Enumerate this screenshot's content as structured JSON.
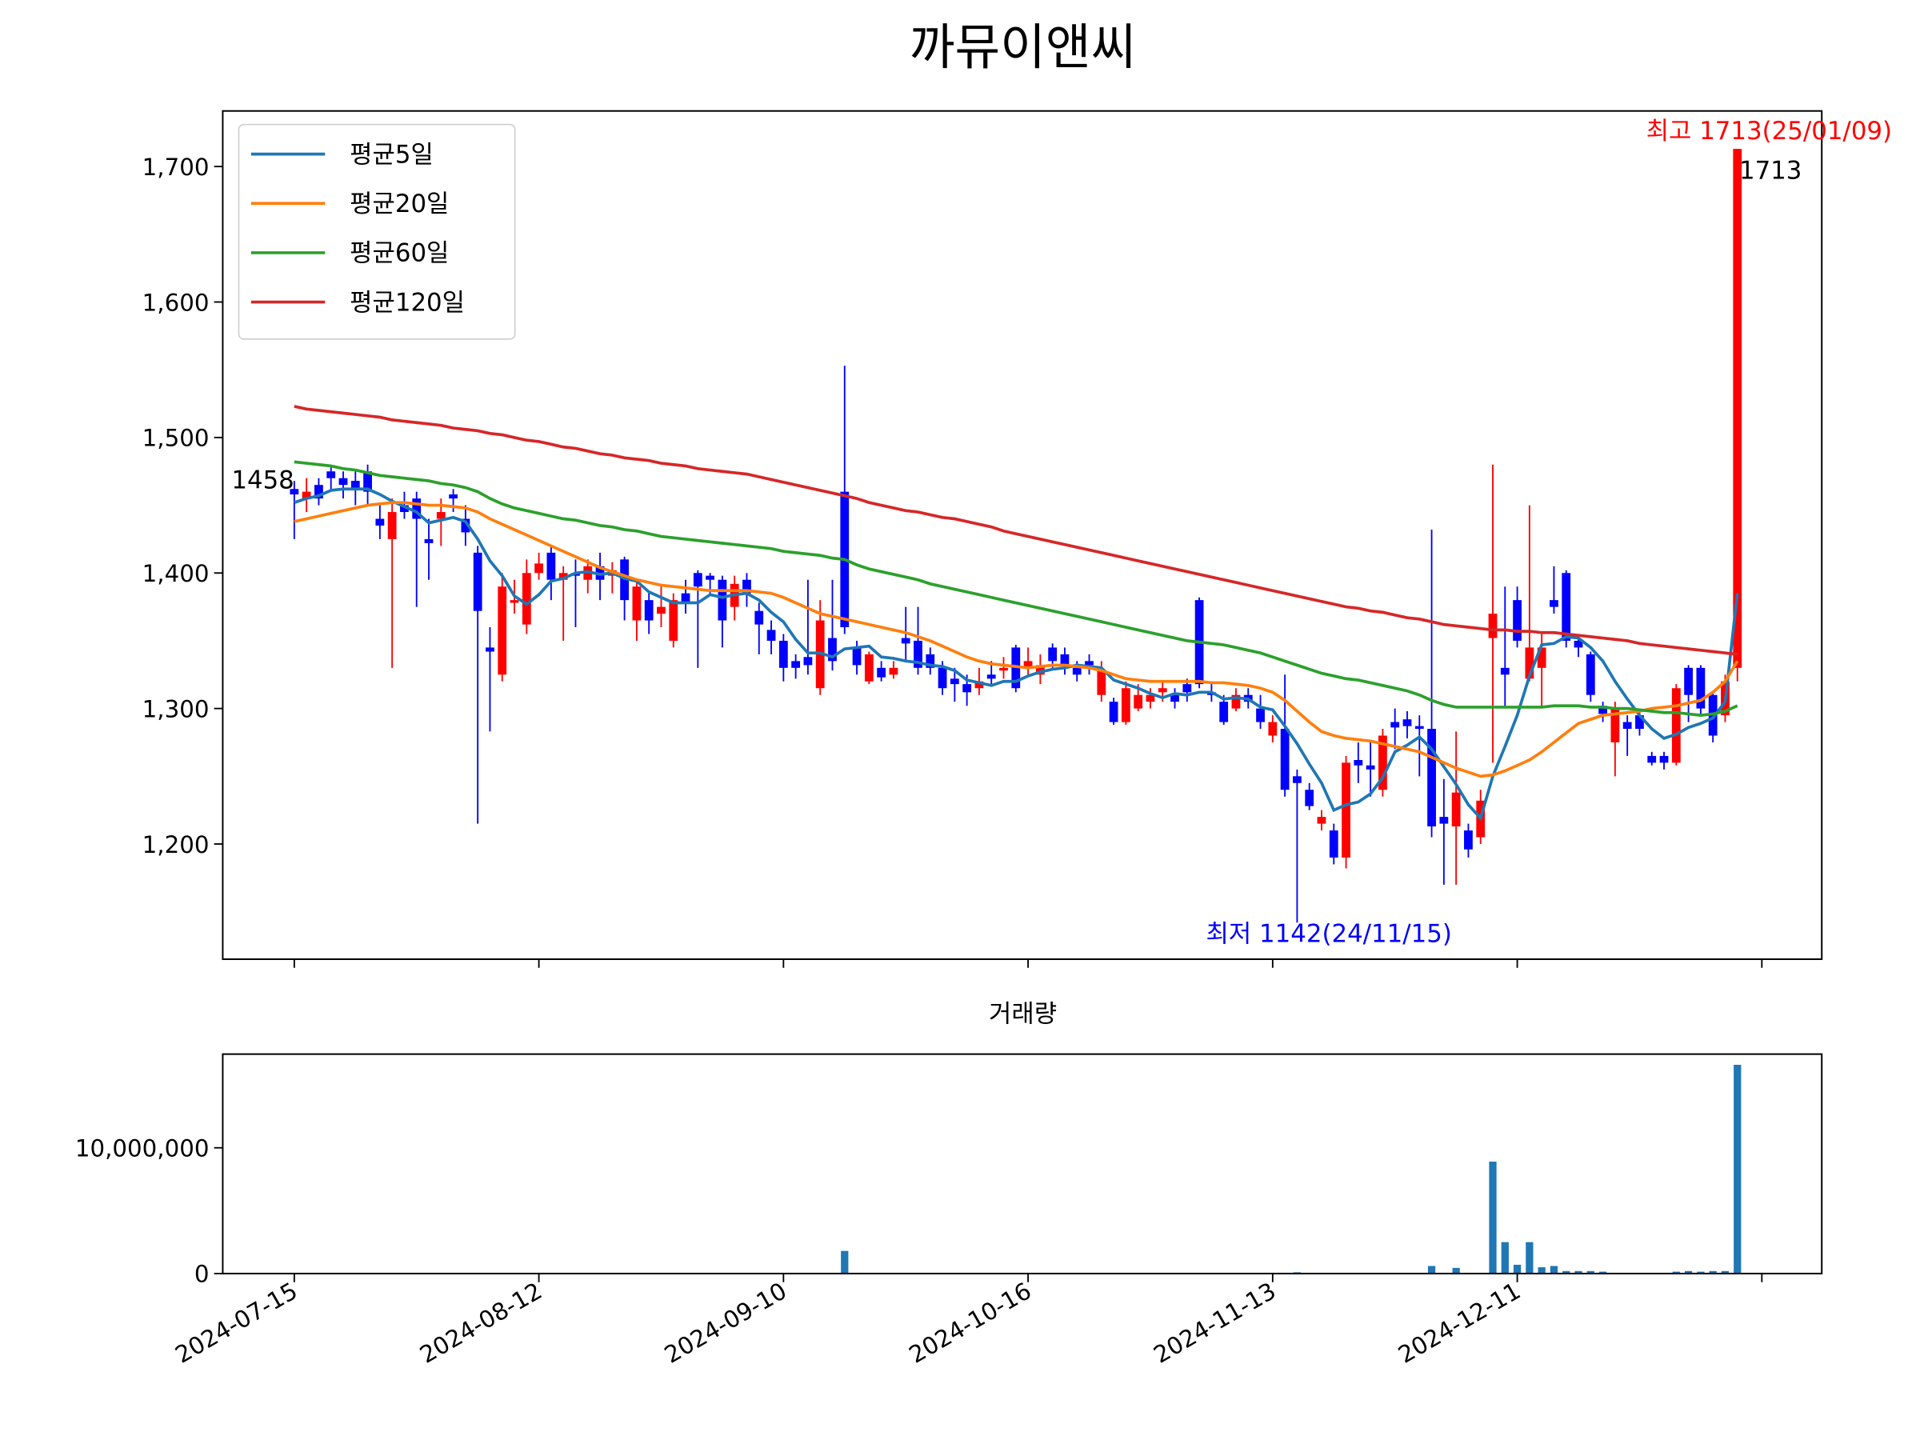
{
  "chart_data": [
    {
      "type": "candlestick",
      "title": "까뮤이앤씨",
      "open": [
        1462,
        1455,
        1465,
        1475,
        1470,
        1468,
        1475,
        1440,
        1425,
        1450,
        1455,
        1425,
        1440,
        1458,
        1440,
        1415,
        1345,
        1325,
        1378,
        1362,
        1400,
        1415,
        1395,
        1400,
        1395,
        1405,
        1398,
        1410,
        1365,
        1380,
        1370,
        1350,
        1385,
        1400,
        1398,
        1395,
        1375,
        1395,
        1372,
        1358,
        1350,
        1335,
        1338,
        1315,
        1352,
        1460,
        1345,
        1320,
        1330,
        1325,
        1352,
        1350,
        1340,
        1330,
        1322,
        1318,
        1315,
        1325,
        1328,
        1345,
        1330,
        1325,
        1345,
        1340,
        1330,
        1335,
        1310,
        1305,
        1290,
        1300,
        1305,
        1312,
        1310,
        1318,
        1380,
        1312,
        1305,
        1300,
        1310,
        1300,
        1280,
        1285,
        1250,
        1240,
        1215,
        1210,
        1190,
        1262,
        1258,
        1240,
        1290,
        1292,
        1287,
        1285,
        1220,
        1213,
        1210,
        1205,
        1352,
        1330,
        1380,
        1322,
        1330,
        1380,
        1400,
        1350,
        1340,
        1302,
        1275,
        1290,
        1295,
        1265,
        1265,
        1260,
        1330,
        1330,
        1310,
        1295,
        1330
      ],
      "high": [
        1468,
        1470,
        1470,
        1478,
        1475,
        1475,
        1480,
        1450,
        1455,
        1460,
        1460,
        1440,
        1455,
        1462,
        1450,
        1420,
        1360,
        1400,
        1395,
        1410,
        1415,
        1420,
        1405,
        1410,
        1410,
        1415,
        1408,
        1412,
        1395,
        1385,
        1390,
        1385,
        1395,
        1402,
        1400,
        1398,
        1398,
        1400,
        1378,
        1365,
        1355,
        1340,
        1395,
        1380,
        1395,
        1553,
        1350,
        1342,
        1335,
        1335,
        1375,
        1375,
        1345,
        1335,
        1330,
        1325,
        1330,
        1335,
        1338,
        1347,
        1345,
        1340,
        1348,
        1345,
        1335,
        1340,
        1335,
        1308,
        1320,
        1318,
        1315,
        1320,
        1315,
        1322,
        1382,
        1320,
        1310,
        1315,
        1315,
        1310,
        1295,
        1325,
        1255,
        1245,
        1225,
        1215,
        1265,
        1275,
        1275,
        1285,
        1300,
        1298,
        1295,
        1432,
        1248,
        1283,
        1215,
        1240,
        1480,
        1390,
        1390,
        1450,
        1355,
        1405,
        1402,
        1355,
        1342,
        1305,
        1305,
        1295,
        1300,
        1268,
        1268,
        1318,
        1332,
        1332,
        1312,
        1325,
        1713
      ],
      "low": [
        1425,
        1445,
        1450,
        1460,
        1455,
        1450,
        1450,
        1425,
        1330,
        1440,
        1375,
        1395,
        1420,
        1445,
        1420,
        1215,
        1283,
        1320,
        1370,
        1355,
        1395,
        1380,
        1350,
        1360,
        1385,
        1380,
        1385,
        1365,
        1350,
        1355,
        1360,
        1345,
        1370,
        1330,
        1385,
        1345,
        1365,
        1375,
        1340,
        1340,
        1320,
        1322,
        1325,
        1310,
        1328,
        1355,
        1325,
        1318,
        1320,
        1322,
        1335,
        1325,
        1325,
        1310,
        1305,
        1302,
        1310,
        1318,
        1322,
        1312,
        1325,
        1318,
        1330,
        1325,
        1320,
        1325,
        1305,
        1288,
        1288,
        1298,
        1300,
        1305,
        1300,
        1305,
        1315,
        1305,
        1288,
        1298,
        1300,
        1285,
        1275,
        1235,
        1142,
        1225,
        1210,
        1185,
        1182,
        1245,
        1235,
        1235,
        1270,
        1278,
        1250,
        1205,
        1170,
        1170,
        1190,
        1200,
        1260,
        1300,
        1345,
        1320,
        1300,
        1370,
        1345,
        1338,
        1305,
        1290,
        1250,
        1265,
        1280,
        1258,
        1255,
        1258,
        1290,
        1295,
        1275,
        1290,
        1320
      ],
      "close": [
        1458,
        1460,
        1455,
        1470,
        1465,
        1462,
        1460,
        1435,
        1445,
        1445,
        1440,
        1422,
        1445,
        1455,
        1430,
        1372,
        1342,
        1390,
        1380,
        1400,
        1407,
        1395,
        1400,
        1398,
        1405,
        1395,
        1402,
        1380,
        1390,
        1365,
        1375,
        1380,
        1378,
        1390,
        1395,
        1365,
        1392,
        1385,
        1362,
        1350,
        1330,
        1330,
        1332,
        1365,
        1335,
        1360,
        1332,
        1340,
        1323,
        1330,
        1348,
        1330,
        1330,
        1315,
        1318,
        1312,
        1320,
        1322,
        1330,
        1315,
        1335,
        1332,
        1335,
        1332,
        1325,
        1332,
        1328,
        1290,
        1315,
        1310,
        1310,
        1315,
        1305,
        1312,
        1318,
        1310,
        1290,
        1310,
        1305,
        1290,
        1290,
        1240,
        1245,
        1228,
        1220,
        1190,
        1260,
        1258,
        1255,
        1280,
        1286,
        1287,
        1285,
        1213,
        1215,
        1238,
        1196,
        1232,
        1370,
        1325,
        1350,
        1345,
        1345,
        1375,
        1350,
        1345,
        1310,
        1296,
        1300,
        1285,
        1285,
        1260,
        1260,
        1315,
        1310,
        1300,
        1280,
        1320,
        1713
      ],
      "up_color": "#ff0000",
      "down_color": "#0000ff",
      "series": [
        {
          "name": "평균5일",
          "color": "#1f77b4",
          "values": [
            1452,
            1455,
            1457,
            1461,
            1462,
            1462,
            1462,
            1458,
            1453,
            1449,
            1445,
            1437,
            1439,
            1441,
            1438,
            1425,
            1409,
            1398,
            1383,
            1377,
            1384,
            1394,
            1396,
            1400,
            1401,
            1399,
            1400,
            1396,
            1394,
            1386,
            1382,
            1378,
            1378,
            1378,
            1384,
            1382,
            1384,
            1385,
            1380,
            1371,
            1364,
            1351,
            1341,
            1341,
            1338,
            1344,
            1345,
            1346,
            1338,
            1337,
            1335,
            1334,
            1332,
            1331,
            1328,
            1321,
            1319,
            1317,
            1320,
            1320,
            1324,
            1327,
            1329,
            1330,
            1332,
            1331,
            1330,
            1321,
            1318,
            1315,
            1311,
            1308,
            1311,
            1310,
            1312,
            1312,
            1307,
            1308,
            1307,
            1301,
            1299,
            1287,
            1274,
            1259,
            1245,
            1225,
            1229,
            1231,
            1237,
            1249,
            1268,
            1273,
            1279,
            1270,
            1257,
            1244,
            1229,
            1219,
            1250,
            1272,
            1295,
            1324,
            1347,
            1348,
            1353,
            1352,
            1345,
            1335,
            1320,
            1307,
            1295,
            1285,
            1278,
            1281,
            1286,
            1289,
            1293,
            1305,
            1385
          ]
        },
        {
          "name": "평균20일",
          "color": "#ff7f0e",
          "values": [
            1438,
            1440,
            1442,
            1444,
            1446,
            1448,
            1450,
            1451,
            1452,
            1452,
            1451,
            1450,
            1450,
            1449,
            1448,
            1445,
            1440,
            1436,
            1432,
            1428,
            1424,
            1420,
            1416,
            1412,
            1408,
            1404,
            1401,
            1398,
            1395,
            1393,
            1391,
            1390,
            1389,
            1388,
            1387,
            1387,
            1387,
            1387,
            1386,
            1385,
            1382,
            1378,
            1374,
            1370,
            1368,
            1366,
            1364,
            1362,
            1360,
            1358,
            1356,
            1353,
            1350,
            1346,
            1342,
            1338,
            1335,
            1333,
            1332,
            1331,
            1330,
            1331,
            1332,
            1332,
            1331,
            1330,
            1328,
            1325,
            1322,
            1321,
            1320,
            1320,
            1320,
            1320,
            1320,
            1319,
            1319,
            1318,
            1317,
            1315,
            1312,
            1306,
            1298,
            1290,
            1283,
            1280,
            1278,
            1277,
            1276,
            1274,
            1272,
            1270,
            1268,
            1264,
            1260,
            1256,
            1253,
            1250,
            1251,
            1254,
            1258,
            1262,
            1268,
            1275,
            1282,
            1289,
            1292,
            1295,
            1296,
            1297,
            1298,
            1300,
            1301,
            1302,
            1304,
            1306,
            1312,
            1320,
            1335
          ]
        },
        {
          "name": "평균60일",
          "color": "#2ca02c",
          "values": [
            1482,
            1481,
            1480,
            1479,
            1477,
            1476,
            1474,
            1472,
            1471,
            1470,
            1469,
            1468,
            1466,
            1465,
            1463,
            1460,
            1455,
            1451,
            1448,
            1446,
            1444,
            1442,
            1440,
            1439,
            1437,
            1435,
            1434,
            1432,
            1431,
            1429,
            1427,
            1426,
            1425,
            1424,
            1423,
            1422,
            1421,
            1420,
            1419,
            1418,
            1416,
            1415,
            1414,
            1413,
            1411,
            1410,
            1406,
            1403,
            1401,
            1399,
            1397,
            1395,
            1392,
            1390,
            1388,
            1386,
            1384,
            1382,
            1380,
            1378,
            1376,
            1374,
            1372,
            1370,
            1368,
            1366,
            1364,
            1362,
            1360,
            1358,
            1356,
            1354,
            1352,
            1350,
            1349,
            1348,
            1347,
            1345,
            1343,
            1341,
            1338,
            1335,
            1332,
            1329,
            1326,
            1324,
            1322,
            1321,
            1319,
            1317,
            1315,
            1313,
            1310,
            1306,
            1303,
            1301,
            1301,
            1301,
            1301,
            1301,
            1301,
            1301,
            1301,
            1302,
            1302,
            1302,
            1301,
            1301,
            1300,
            1300,
            1299,
            1298,
            1297,
            1297,
            1296,
            1295,
            1296,
            1298,
            1302
          ]
        },
        {
          "name": "평균120일",
          "color": "#d62728",
          "values": [
            1523,
            1521,
            1520,
            1519,
            1518,
            1517,
            1516,
            1515,
            1513,
            1512,
            1511,
            1510,
            1509,
            1507,
            1506,
            1505,
            1503,
            1502,
            1500,
            1498,
            1497,
            1495,
            1493,
            1492,
            1490,
            1488,
            1487,
            1485,
            1484,
            1483,
            1481,
            1480,
            1479,
            1477,
            1476,
            1475,
            1474,
            1473,
            1471,
            1469,
            1467,
            1465,
            1463,
            1461,
            1459,
            1457,
            1455,
            1452,
            1450,
            1448,
            1446,
            1445,
            1443,
            1441,
            1440,
            1438,
            1436,
            1434,
            1431,
            1429,
            1427,
            1425,
            1423,
            1421,
            1419,
            1417,
            1415,
            1413,
            1411,
            1409,
            1407,
            1405,
            1403,
            1401,
            1399,
            1397,
            1395,
            1393,
            1391,
            1389,
            1387,
            1385,
            1383,
            1381,
            1379,
            1377,
            1375,
            1374,
            1372,
            1371,
            1369,
            1367,
            1366,
            1364,
            1362,
            1361,
            1360,
            1359,
            1358,
            1358,
            1357,
            1357,
            1356,
            1356,
            1355,
            1354,
            1353,
            1352,
            1351,
            1350,
            1348,
            1347,
            1346,
            1345,
            1344,
            1343,
            1342,
            1341,
            1340
          ]
        }
      ],
      "annotations": [
        {
          "text": "최고 1713(25/01/09)",
          "color": "#ff0000"
        },
        {
          "text": "최저 1142(24/11/15)",
          "color": "#0000ff"
        }
      ],
      "xlim": [
        -5.85,
        124.9
      ],
      "xticks": [
        0,
        20,
        40,
        60,
        80,
        100,
        120
      ],
      "show_xtick_labels": false,
      "ylim": [
        1115,
        1741
      ],
      "yticks": [
        {
          "value": 1200,
          "label": "1,200"
        },
        {
          "value": 1300,
          "label": "1,300"
        },
        {
          "value": 1400,
          "label": "1,400"
        },
        {
          "value": 1500,
          "label": "1,500"
        },
        {
          "value": 1600,
          "label": "1,600"
        },
        {
          "value": 1700,
          "label": "1,700"
        }
      ],
      "legend": "upper left"
    },
    {
      "type": "bar",
      "title": "거래량",
      "color": "#1f77b4",
      "values": [
        20000,
        20000,
        20000,
        20000,
        20000,
        20000,
        20000,
        20000,
        20000,
        20000,
        20000,
        20000,
        20000,
        20000,
        20000,
        20000,
        20000,
        20000,
        20000,
        20000,
        20000,
        20000,
        20000,
        20000,
        20000,
        20000,
        20000,
        20000,
        20000,
        20000,
        20000,
        20000,
        20000,
        20000,
        20000,
        20000,
        20000,
        20000,
        20000,
        20000,
        20000,
        20000,
        20000,
        20000,
        20000,
        1800000,
        20000,
        20000,
        20000,
        20000,
        20000,
        20000,
        20000,
        20000,
        20000,
        20000,
        20000,
        20000,
        20000,
        20000,
        20000,
        20000,
        20000,
        20000,
        20000,
        20000,
        20000,
        20000,
        20000,
        20000,
        20000,
        20000,
        20000,
        20000,
        20000,
        20000,
        20000,
        20000,
        20000,
        20000,
        20000,
        20000,
        100000,
        20000,
        20000,
        20000,
        20000,
        20000,
        20000,
        20000,
        20000,
        20000,
        20000,
        600000,
        20000,
        450000,
        20000,
        20000,
        8900000,
        2500000,
        700000,
        2500000,
        500000,
        600000,
        200000,
        200000,
        200000,
        150000,
        20000,
        20000,
        20000,
        20000,
        20000,
        150000,
        200000,
        150000,
        200000,
        200000,
        16600000
      ],
      "xlim": [
        -5.85,
        124.9
      ],
      "xticks": [
        {
          "value": 0,
          "label": "2024-07-15"
        },
        {
          "value": 20,
          "label": "2024-08-12"
        },
        {
          "value": 40,
          "label": "2024-09-10"
        },
        {
          "value": 60,
          "label": "2024-10-16"
        },
        {
          "value": 80,
          "label": "2024-11-13"
        },
        {
          "value": 100,
          "label": "2024-12-11"
        },
        {
          "value": 120
        }
      ],
      "ylim": [
        0,
        17450000
      ],
      "yticks": [
        0,
        {
          "value": 10000000,
          "label": "10,000,000"
        }
      ]
    }
  ]
}
